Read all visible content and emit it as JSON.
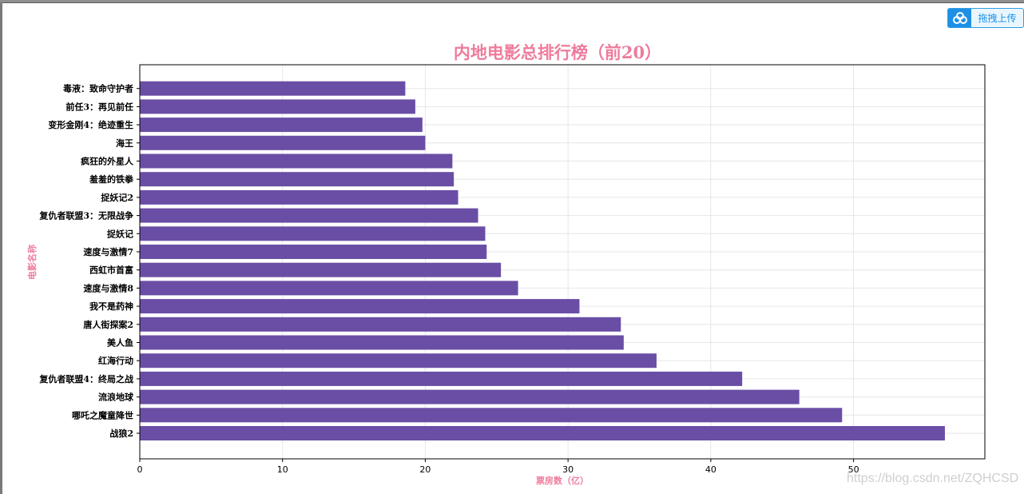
{
  "upload_button": {
    "label": "拖拽上传",
    "icon": "cloud-icon"
  },
  "watermark": "https://blog.csdn.net/ZQHCSD",
  "colors": {
    "bar": "#6a4ea5",
    "title": "#ee7c9c",
    "axis_label": "#ee7c9c",
    "grid": "#e6e6e6"
  },
  "chart_data": {
    "type": "bar",
    "orientation": "horizontal",
    "title": "内地电影总排行榜（前20）",
    "xlabel": "票房数（亿）",
    "ylabel": "电影名称",
    "xlim": [
      0,
      59.2
    ],
    "xticks": [
      0,
      10,
      20,
      30,
      40,
      50
    ],
    "grid": true,
    "categories": [
      "战狼2",
      "哪吒之魔童降世",
      "流浪地球",
      "复仇者联盟4：终局之战",
      "红海行动",
      "美人鱼",
      "唐人街探案2",
      "我不是药神",
      "速度与激情8",
      "西虹市首富",
      "速度与激情7",
      "捉妖记",
      "复仇者联盟3：无限战争",
      "捉妖记2",
      "羞羞的铁拳",
      "疯狂的外星人",
      "海王",
      "变形金刚4：绝迹重生",
      "前任3：再见前任",
      "毒液：致命守护者"
    ],
    "values": [
      56.4,
      49.2,
      46.2,
      42.2,
      36.2,
      33.9,
      33.7,
      30.8,
      26.5,
      25.3,
      24.3,
      24.2,
      23.7,
      22.3,
      22.0,
      21.9,
      20.0,
      19.8,
      19.3,
      18.6
    ]
  }
}
